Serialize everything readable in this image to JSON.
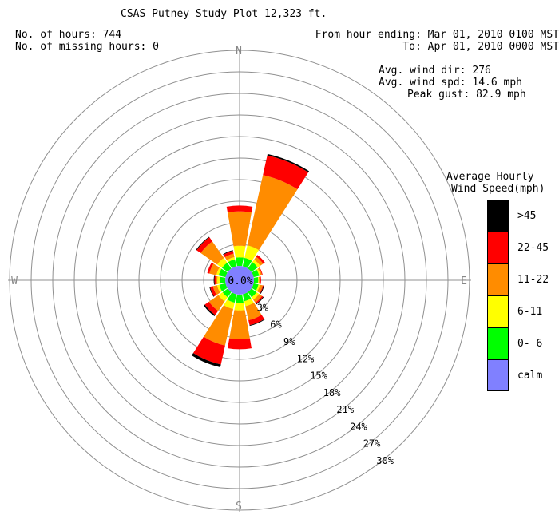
{
  "header": {
    "title": "CSAS Putney Study Plot 12,323 ft.",
    "hours": "No. of hours: 744",
    "missing": "No. of missing hours: 0",
    "from": "From hour ending: Mar 01, 2010 0100 MST",
    "to": "To: Apr 01, 2010 0000 MST",
    "avg_dir": "Avg. wind dir: 276",
    "avg_spd": "Avg. wind spd: 14.6 mph",
    "peak_gust": "Peak gust: 82.9 mph"
  },
  "legend": {
    "title_line1": "Average Hourly",
    "title_line2": "Wind Speed(mph)",
    "items": [
      {
        "label": ">45",
        "color": "#000000"
      },
      {
        "label": "22-45",
        "color": "#ff0000"
      },
      {
        "label": "11-22",
        "color": "#ff8c00"
      },
      {
        "label": "6-11",
        "color": "#ffff00"
      },
      {
        "label": "0- 6",
        "color": "#00ff00"
      },
      {
        "label": "calm",
        "color": "#8080ff"
      }
    ]
  },
  "chart_data": {
    "type": "wind-rose",
    "title": "CSAS Putney Study Plot 12,323 ft.",
    "calm_label": "0.0%",
    "directions": [
      "N",
      "E",
      "S",
      "W"
    ],
    "ring_labels": [
      "3%",
      "6%",
      "9%",
      "12%",
      "15%",
      "18%",
      "21%",
      "24%",
      "27%",
      "30%"
    ],
    "ring_values": [
      3,
      6,
      9,
      12,
      15,
      18,
      21,
      24,
      27,
      30
    ],
    "bins": [
      "0- 6",
      "6-11",
      "11-22",
      "22-45",
      ">45"
    ],
    "bin_colors": [
      "#00ff00",
      "#ffff00",
      "#ff8c00",
      "#ff0000",
      "#000000"
    ],
    "sectors": [
      {
        "dir": 0,
        "cum": [
          1.2,
          2.8,
          7.6,
          8.4,
          8.4
        ]
      },
      {
        "dir": 22.5,
        "cum": [
          1.2,
          3.0,
          13.0,
          15.8,
          16.0
        ]
      },
      {
        "dir": 45,
        "cum": [
          1.1,
          1.5,
          2.0,
          2.3,
          2.3
        ]
      },
      {
        "dir": 67.5,
        "cum": [
          0.8,
          1.0,
          1.2,
          1.3,
          1.3
        ]
      },
      {
        "dir": 90,
        "cum": [
          0.6,
          0.7,
          0.9,
          1.0,
          1.0
        ]
      },
      {
        "dir": 112.5,
        "cum": [
          0.7,
          0.9,
          1.3,
          1.4,
          1.5
        ]
      },
      {
        "dir": 135,
        "cum": [
          0.9,
          1.3,
          1.8,
          2.0,
          2.1
        ]
      },
      {
        "dir": 157.5,
        "cum": [
          1.0,
          1.7,
          3.7,
          4.4,
          4.5
        ]
      },
      {
        "dir": 180,
        "cum": [
          1.2,
          2.2,
          6.2,
          7.6,
          7.6
        ]
      },
      {
        "dir": 202.5,
        "cum": [
          1.2,
          2.1,
          7.3,
          10.0,
          10.4
        ]
      },
      {
        "dir": 225,
        "cum": [
          0.9,
          1.6,
          3.2,
          3.9,
          4.1
        ]
      },
      {
        "dir": 247.5,
        "cum": [
          0.9,
          1.2,
          1.8,
          2.2,
          2.3
        ]
      },
      {
        "dir": 270,
        "cum": [
          0.8,
          1.1,
          1.3,
          1.5,
          1.6
        ]
      },
      {
        "dir": 292.5,
        "cum": [
          1.0,
          1.3,
          2.3,
          2.6,
          2.6
        ]
      },
      {
        "dir": 315,
        "cum": [
          1.0,
          1.8,
          4.6,
          5.3,
          5.4
        ]
      },
      {
        "dir": 337.5,
        "cum": [
          1.0,
          1.3,
          1.8,
          2.2,
          2.3
        ]
      }
    ]
  }
}
